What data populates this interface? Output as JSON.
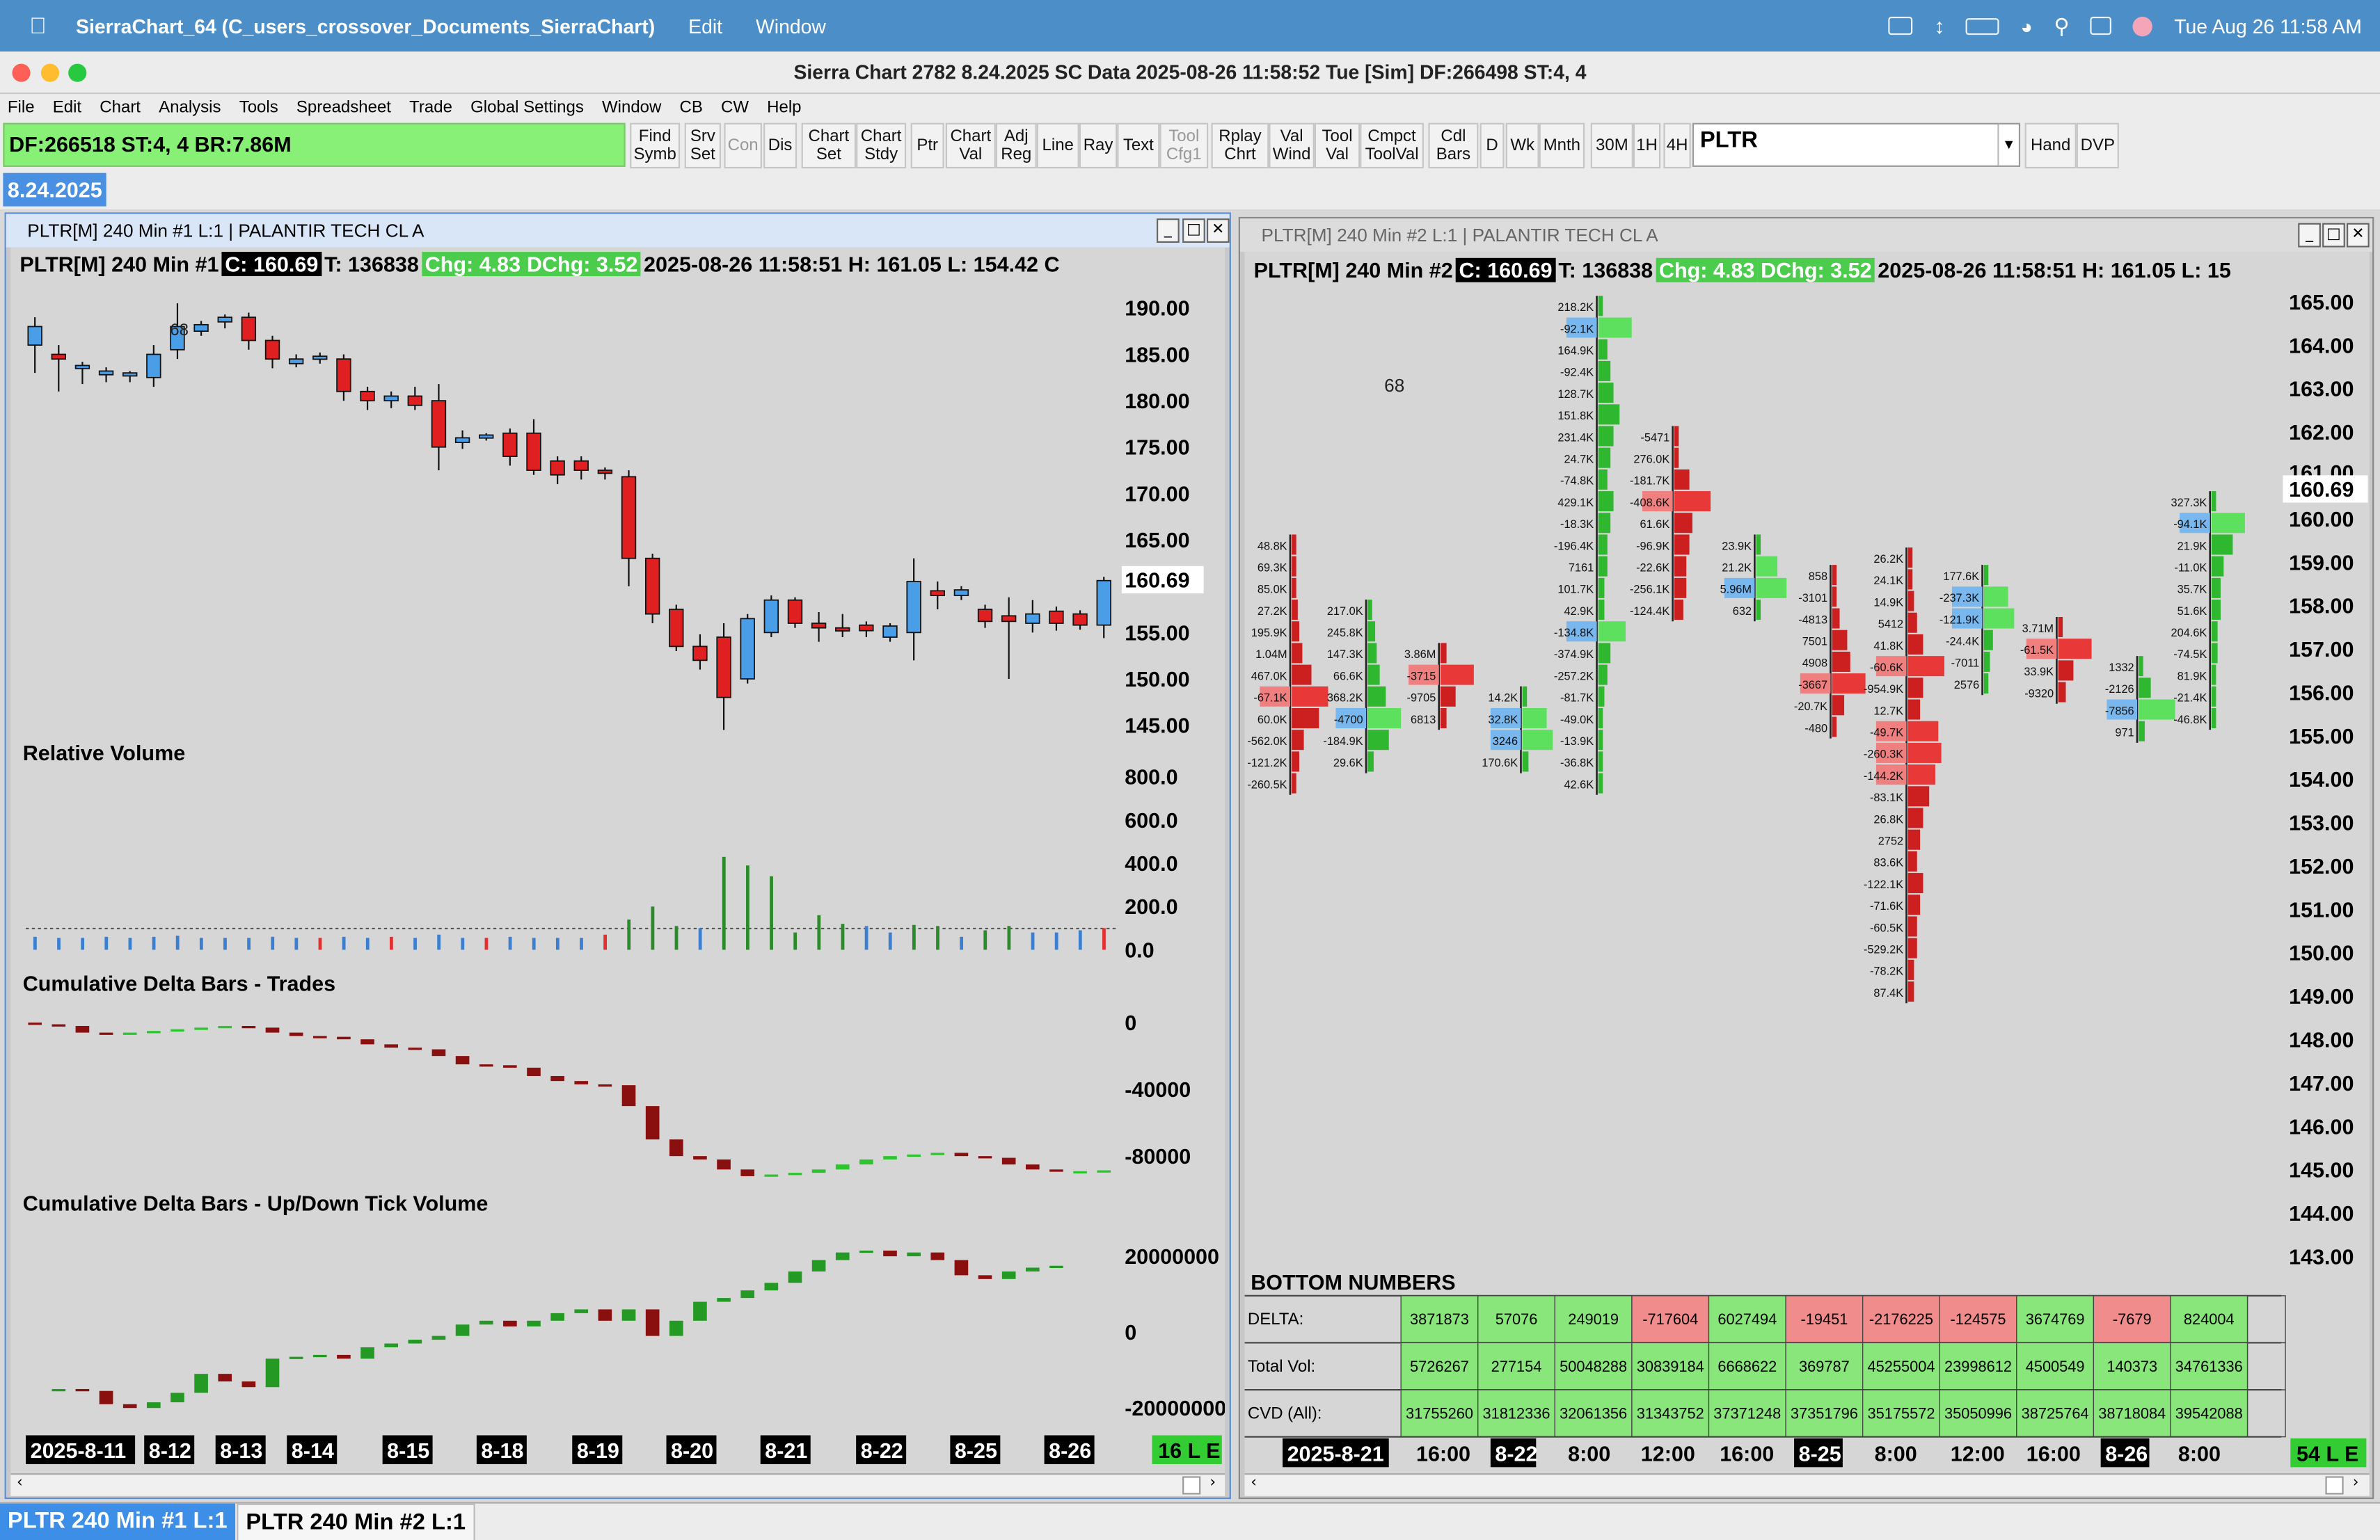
{
  "menubar": {
    "app": "SierraChart_64 (C_users_crossover_Documents_SierraChart)",
    "items": [
      "Edit",
      "Window"
    ],
    "datetime": "Tue Aug 26  11:58 AM"
  },
  "window_title": "Sierra Chart 2782 8.24.2025 SC Data 2025-08-26  11:58:52 Tue [Sim] DF:266498  ST:4, 4",
  "app_menu": [
    "File",
    "Edit",
    "Chart",
    "Analysis",
    "Tools",
    "Spreadsheet",
    "Trade",
    "Global Settings",
    "Window",
    "CB",
    "CW",
    "Help"
  ],
  "toolbar": {
    "status": "DF:266518  ST:4, 4  BR:7.86M",
    "buttons": [
      "Find\nSymb",
      "Srv\nSet",
      "Con",
      "Dis",
      "Chart\nSet",
      "Chart\nStdy",
      "Ptr",
      "Chart\nVal",
      "Adj\nReg",
      "Line",
      "Ray",
      "Text",
      "Tool\nCfg1",
      "Rplay\nChrt",
      "Val\nWind",
      "Tool\nVal",
      "Cmpct\nToolVal",
      "Cdl\nBars",
      "D",
      "Wk",
      "Mnth",
      "30M",
      "1H",
      "4H",
      "Hand",
      "DVP"
    ],
    "symbol": "PLTR"
  },
  "version_badge": "8.24.2025",
  "chart1": {
    "title": "PLTR[M]  240 Min  #1 L:1  |  PALANTIR TECH CL A",
    "header": {
      "sym": "PLTR[M]  240 Min  #1",
      "close": "C: 160.69",
      "info1": "T: 136838",
      "chg": "Chg: 4.83",
      "dchg": "DChg: 3.52",
      "info2": "2025-08-26 11:58:51  H: 161.05  L: 154.42  C"
    },
    "price_axis": [
      "190.00",
      "185.00",
      "180.00",
      "175.00",
      "170.00",
      "165.00",
      "160.69",
      "155.00",
      "150.00",
      "145.00"
    ],
    "marker": "68",
    "rel_vol_title": "Relative Volume",
    "rel_vol_axis": [
      "800.0",
      "600.0",
      "400.0",
      "200.0",
      "0.0"
    ],
    "cd_trades_title": "Cumulative Delta Bars - Trades",
    "cd_trades_axis": [
      "0",
      "-40000",
      "-80000"
    ],
    "cd_tick_title": "Cumulative Delta Bars - Up/Down Tick Volume",
    "cd_tick_axis": [
      "20000000",
      "0",
      "-20000000"
    ],
    "dates": [
      "2025-8-11",
      "8-12",
      "8-13",
      "8-14",
      "8-15",
      "8-18",
      "8-19",
      "8-20",
      "8-21",
      "8-22",
      "8-25",
      "8-26"
    ],
    "corner": "16 L E"
  },
  "chart2": {
    "title": "PLTR[M]  240 Min  #2 L:1  |  PALANTIR TECH CL A",
    "header": {
      "sym": "PLTR[M]  240 Min  #2",
      "close": "C: 160.69",
      "info1": "T: 136838",
      "chg": "Chg: 4.83",
      "dchg": "DChg: 3.52",
      "info2": "2025-08-26 11:58:51  H: 161.05  L: 15"
    },
    "price_axis": [
      "165.00",
      "164.00",
      "163.00",
      "162.00",
      "161.00",
      "160.69",
      "160.00",
      "159.00",
      "158.00",
      "157.00",
      "156.00",
      "155.00",
      "154.00",
      "153.00",
      "152.00",
      "151.00",
      "150.00",
      "149.00",
      "148.00",
      "147.00",
      "146.00",
      "145.00",
      "144.00",
      "143.00"
    ],
    "marker": "68",
    "bottom_title": "BOTTOM NUMBERS",
    "rows": [
      {
        "label": "DELTA:",
        "values": [
          "3871873",
          "57076",
          "249019",
          "-717604",
          "6027494",
          "-19451",
          "-2176225",
          "-124575",
          "3674769",
          "-7679",
          "824004"
        ]
      },
      {
        "label": "Total Vol:",
        "values": [
          "5726267",
          "277154",
          "50048288",
          "30839184",
          "6668622",
          "369787",
          "45255004",
          "23998612",
          "4500549",
          "140373",
          "34761336"
        ]
      },
      {
        "label": "CVD (All):",
        "values": [
          "31755260",
          "31812336",
          "32061356",
          "31343752",
          "37371248",
          "37351796",
          "35175572",
          "35050996",
          "38725764",
          "38718084",
          "39542088"
        ]
      }
    ],
    "times": [
      "2025-8-21",
      "16:00",
      "8-22",
      "8:00",
      "12:00",
      "16:00",
      "8-25",
      "8:00",
      "12:00",
      "16:00",
      "8-26",
      "8:00"
    ],
    "corner": "54 L E"
  },
  "tasks": [
    "PLTR  240 Min  #1 L:1",
    "PLTR  240 Min  #2 L:1"
  ]
}
